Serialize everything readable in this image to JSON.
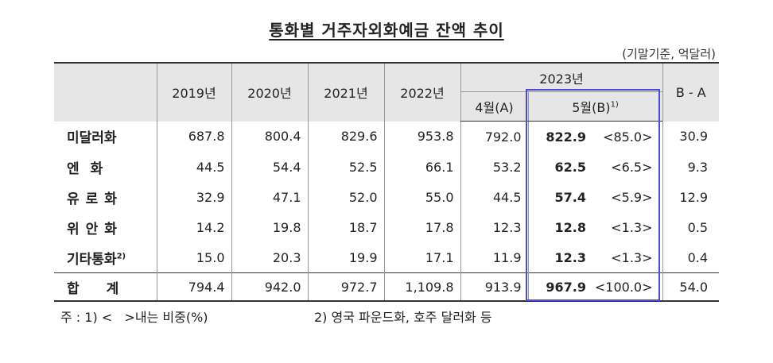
{
  "title": "통화별 거주자외화예금 잔액 추이",
  "unit": "(기말기준, 억달러)",
  "header": {
    "years": [
      "2019년",
      "2020년",
      "2021년",
      "2022년"
    ],
    "year2023": "2023년",
    "apr": "4월(A)",
    "may": "5월(B)",
    "may_note": "1)",
    "diff": "B - A"
  },
  "rows": [
    {
      "label": "미달러화",
      "note": "",
      "v": [
        "687.8",
        "800.4",
        "829.6",
        "953.8",
        "792.0"
      ],
      "may": "822.9",
      "share": "<85.0>",
      "diff": "30.9"
    },
    {
      "label": "엔화",
      "note": "",
      "v": [
        "44.5",
        "54.4",
        "52.5",
        "66.1",
        "53.2"
      ],
      "may": "62.5",
      "share": "<6.5>",
      "diff": "9.3"
    },
    {
      "label": "유로화",
      "note": "",
      "v": [
        "32.9",
        "47.1",
        "52.0",
        "55.0",
        "44.5"
      ],
      "may": "57.4",
      "share": "<5.9>",
      "diff": "12.9"
    },
    {
      "label": "위안화",
      "note": "",
      "v": [
        "14.2",
        "19.8",
        "18.7",
        "17.8",
        "12.3"
      ],
      "may": "12.8",
      "share": "<1.3>",
      "diff": "0.5"
    },
    {
      "label": "기타통화",
      "note": "2)",
      "v": [
        "15.0",
        "20.3",
        "19.9",
        "17.1",
        "11.9"
      ],
      "may": "12.3",
      "share": "<1.3>",
      "diff": "0.4"
    }
  ],
  "total": {
    "label": "합계",
    "v": [
      "794.4",
      "942.0",
      "972.7",
      "1,109.8",
      "913.9"
    ],
    "may": "967.9",
    "share": "<100.0>",
    "diff": "54.0"
  },
  "notes": {
    "note1": "주 : 1) <   >내는 비중(%)",
    "note2": "2) 영국 파운드화, 호주 달러화 등"
  }
}
